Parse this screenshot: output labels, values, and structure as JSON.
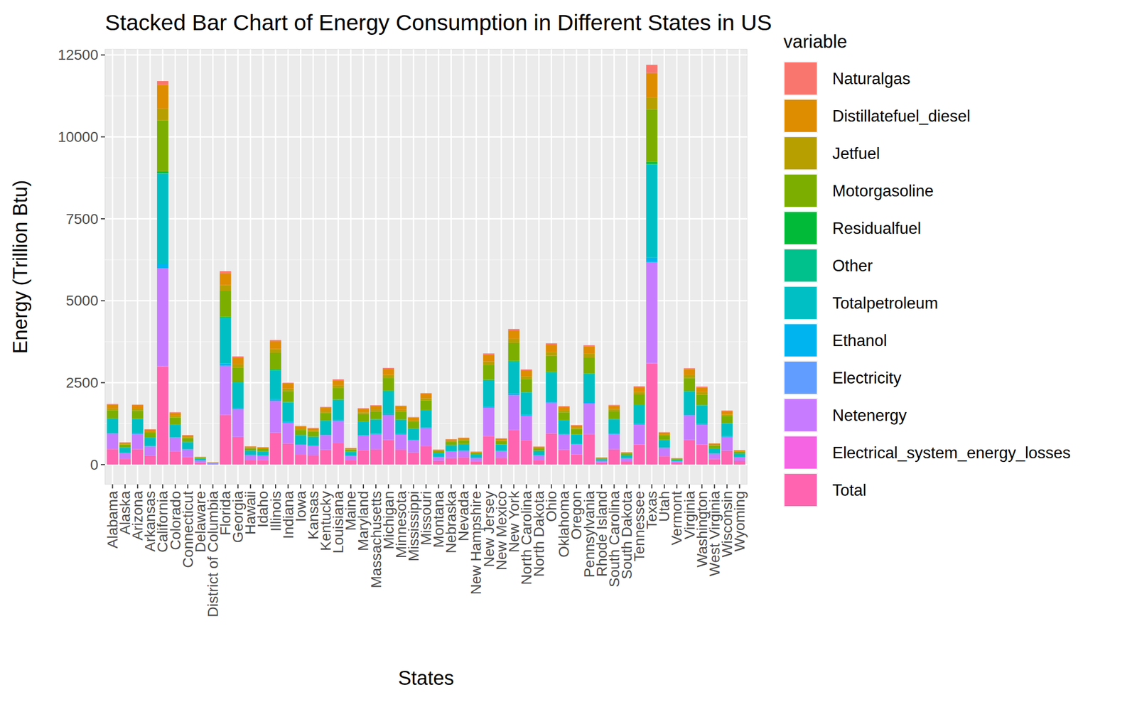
{
  "chart_data": {
    "type": "bar",
    "stacked": true,
    "title": "Stacked Bar Chart of Energy Consumption in Different States in US",
    "x_label": "States",
    "y_label": "Energy (Trillion Btu)",
    "legend_title": "variable",
    "legend": "right",
    "grid": true,
    "ylim": [
      -600,
      12670
    ],
    "yticks": [
      0,
      2500,
      5000,
      7500,
      10000,
      12500
    ],
    "categories": [
      "Alabama",
      "Alaska",
      "Arizona",
      "Arkansas",
      "California",
      "Colorado",
      "Connecticut",
      "Delaware",
      "District of Columbia",
      "Florida",
      "Georgia",
      "Hawaii",
      "Idaho",
      "Illinois",
      "Indiana",
      "Iowa",
      "Kansas",
      "Kentucky",
      "Louisiana",
      "Maine",
      "Maryland",
      "Massachusetts",
      "Michigan",
      "Minnesota",
      "Mississippi",
      "Missouri",
      "Montana",
      "Nebraska",
      "Nevada",
      "New Hampshire",
      "New Jersey",
      "New Mexico",
      "New York",
      "North Carolina",
      "North Dakota",
      "Ohio",
      "Oklahoma",
      "Oregon",
      "Pennsylvania",
      "Rhode Island",
      "South Carolina",
      "South Dakota",
      "Tennessee",
      "Texas",
      "Utah",
      "Vermont",
      "Virginia",
      "Washington",
      "West Virginia",
      "Wisconsin",
      "Wyoming"
    ],
    "series": [
      {
        "name": "Naturalgas",
        "color": "#F8766D",
        "values": [
          19,
          7,
          19,
          11,
          120,
          16,
          9,
          2,
          1,
          60,
          34,
          6,
          5,
          39,
          26,
          12,
          11,
          18,
          27,
          5,
          18,
          19,
          30,
          18,
          15,
          22,
          5,
          8,
          8,
          4,
          35,
          8,
          42,
          30,
          6,
          38,
          18,
          12,
          37,
          2,
          19,
          4,
          24,
          250,
          10,
          2,
          30,
          24,
          7,
          17,
          5
        ]
      },
      {
        "name": "Distillatefuel_diesel",
        "color": "#DE8C00",
        "values": [
          114,
          42,
          112,
          66,
          718,
          98,
          55,
          15,
          4,
          362,
          203,
          34,
          33,
          233,
          153,
          72,
          69,
          108,
          160,
          31,
          106,
          111,
          181,
          110,
          89,
          134,
          28,
          48,
          50,
          24,
          208,
          49,
          253,
          178,
          34,
          227,
          109,
          74,
          223,
          13,
          112,
          23,
          147,
          741,
          61,
          12,
          180,
          146,
          40,
          101,
          27
        ]
      },
      {
        "name": "Jetfuel",
        "color": "#B79F00",
        "values": [
          57,
          21,
          56,
          33,
          359,
          49,
          28,
          7,
          2,
          181,
          101,
          17,
          16,
          117,
          77,
          36,
          34,
          54,
          80,
          16,
          53,
          56,
          90,
          55,
          45,
          67,
          14,
          24,
          25,
          12,
          104,
          25,
          127,
          89,
          17,
          114,
          55,
          37,
          112,
          7,
          56,
          12,
          73,
          370,
          30,
          6,
          90,
          73,
          20,
          51,
          14
        ]
      },
      {
        "name": "Motorgasoline",
        "color": "#7CAE00",
        "values": [
          246,
          90,
          243,
          144,
          1556,
          213,
          120,
          32,
          9,
          785,
          439,
          74,
          71,
          505,
          332,
          157,
          149,
          234,
          346,
          68,
          229,
          241,
          392,
          239,
          193,
          290,
          61,
          103,
          109,
          53,
          451,
          107,
          549,
          386,
          73,
          492,
          237,
          161,
          484,
          29,
          242,
          50,
          318,
          1605,
          132,
          27,
          391,
          317,
          86,
          219,
          59
        ]
      },
      {
        "name": "Residualfuel",
        "color": "#00BA38",
        "values": [
          9,
          3,
          9,
          6,
          60,
          8,
          5,
          1,
          0,
          30,
          17,
          3,
          3,
          19,
          13,
          6,
          6,
          9,
          13,
          3,
          9,
          9,
          15,
          9,
          7,
          11,
          2,
          4,
          4,
          2,
          17,
          4,
          21,
          15,
          3,
          19,
          9,
          6,
          19,
          1,
          9,
          2,
          12,
          62,
          5,
          1,
          15,
          12,
          3,
          8,
          2
        ]
      },
      {
        "name": "Other",
        "color": "#00C08B",
        "values": [
          2,
          1,
          2,
          1,
          15,
          2,
          1,
          0,
          0,
          8,
          4,
          1,
          1,
          5,
          3,
          2,
          1,
          2,
          3,
          1,
          2,
          2,
          4,
          2,
          2,
          3,
          1,
          1,
          1,
          1,
          4,
          1,
          5,
          4,
          1,
          5,
          2,
          2,
          5,
          0,
          2,
          0,
          3,
          15,
          1,
          0,
          4,
          3,
          1,
          2,
          1
        ]
      },
      {
        "name": "Totalpetroleum",
        "color": "#00BFC4",
        "values": [
          435,
          160,
          431,
          254,
          2753,
          376,
          212,
          56,
          17,
          1388,
          776,
          132,
          125,
          894,
          588,
          278,
          263,
          414,
          612,
          120,
          405,
          426,
          694,
          423,
          341,
          513,
          109,
          183,
          193,
          94,
          798,
          189,
          972,
          683,
          130,
          870,
          419,
          284,
          857,
          52,
          428,
          89,
          562,
          2840,
          233,
          47,
          692,
          560,
          153,
          388,
          104
        ]
      },
      {
        "name": "Ethanol",
        "color": "#00B4F0",
        "values": [
          21,
          8,
          21,
          12,
          135,
          18,
          10,
          3,
          1,
          68,
          38,
          6,
          6,
          44,
          29,
          14,
          13,
          20,
          30,
          6,
          20,
          21,
          34,
          21,
          17,
          25,
          5,
          9,
          9,
          5,
          39,
          9,
          48,
          33,
          6,
          43,
          20,
          14,
          42,
          3,
          21,
          4,
          27,
          139,
          11,
          2,
          34,
          27,
          7,
          19,
          5
        ]
      },
      {
        "name": "Electricity",
        "color": "#619CFF",
        "values": [
          1,
          0,
          1,
          1,
          6,
          1,
          0,
          0,
          1,
          3,
          2,
          0,
          0,
          2,
          1,
          1,
          1,
          1,
          1,
          0,
          1,
          1,
          2,
          1,
          1,
          1,
          0,
          0,
          0,
          0,
          2,
          0,
          4,
          1,
          0,
          2,
          1,
          1,
          2,
          0,
          1,
          0,
          1,
          6,
          1,
          0,
          2,
          1,
          0,
          1,
          0
        ]
      },
      {
        "name": "Netenergy",
        "color": "#C77CFF",
        "values": [
          471,
          173,
          466,
          275,
          2977,
          407,
          229,
          61,
          18,
          1501,
          840,
          142,
          135,
          967,
          636,
          300,
          285,
          448,
          662,
          129,
          438,
          461,
          750,
          458,
          369,
          555,
          117,
          198,
          209,
          101,
          863,
          204,
          1051,
          738,
          140,
          941,
          453,
          307,
          926,
          56,
          463,
          97,
          608,
          3072,
          252,
          51,
          748,
          606,
          165,
          420,
          112
        ]
      },
      {
        "name": "Electrical_system_energy_losses",
        "color": "#F564E3",
        "values": [
          2,
          1,
          2,
          1,
          12,
          2,
          1,
          0,
          1,
          6,
          3,
          1,
          1,
          4,
          3,
          1,
          1,
          2,
          3,
          1,
          2,
          2,
          3,
          2,
          1,
          2,
          0,
          1,
          1,
          0,
          3,
          1,
          8,
          3,
          1,
          4,
          2,
          1,
          4,
          0,
          2,
          0,
          2,
          12,
          1,
          0,
          3,
          2,
          1,
          2,
          0
        ]
      },
      {
        "name": "Total",
        "color": "#FF64B0",
        "values": [
          473,
          174,
          468,
          276,
          2992,
          409,
          230,
          61,
          18,
          1509,
          844,
          143,
          136,
          972,
          639,
          302,
          286,
          450,
          665,
          130,
          440,
          463,
          754,
          460,
          371,
          558,
          118,
          199,
          210,
          102,
          867,
          205,
          1056,
          742,
          141,
          946,
          455,
          309,
          931,
          56,
          465,
          97,
          611,
          3087,
          253,
          51,
          752,
          609,
          166,
          422,
          113
        ]
      }
    ]
  }
}
